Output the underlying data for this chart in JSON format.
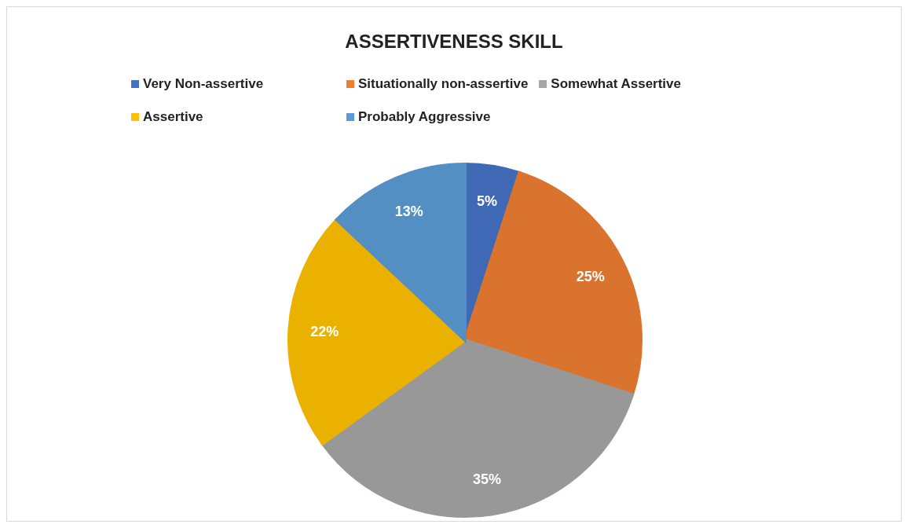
{
  "chart_data": {
    "type": "pie",
    "title": "ASSERTIVENESS SKILL",
    "categories": [
      "Very Non-assertive",
      "Situationally non-assertive",
      "Somewhat Assertive",
      "Assertive",
      "Probably Aggressive"
    ],
    "values": [
      5,
      25,
      35,
      22,
      13
    ],
    "colors": [
      "#4472c4",
      "#ed7d31",
      "#a5a5a5",
      "#ffc000",
      "#5b9bd5"
    ],
    "value_labels": [
      "5%",
      "25%",
      "35%",
      "22%",
      "13%"
    ],
    "legend": "top"
  }
}
